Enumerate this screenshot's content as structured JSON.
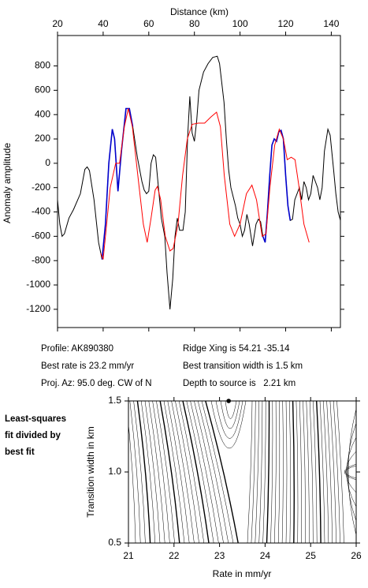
{
  "chart_data": [
    {
      "type": "line",
      "x_label": "Distance (km)",
      "y_label": "Anomaly amplitude",
      "xlim": [
        20,
        144
      ],
      "xticks": [
        20,
        40,
        60,
        80,
        100,
        120,
        140
      ],
      "ylim": [
        -1350,
        1050
      ],
      "yticks": [
        -1200,
        -1000,
        -800,
        -600,
        -400,
        -200,
        0,
        200,
        400,
        600,
        800
      ],
      "series": [
        {
          "color": "#000000",
          "x": [
            20,
            21,
            22,
            23,
            25,
            27,
            30,
            32,
            33,
            34,
            36,
            38,
            39.5,
            41,
            42.5,
            44,
            45,
            46.5,
            48,
            50,
            51.5,
            53,
            55,
            57,
            58,
            59,
            60,
            61,
            62,
            63,
            64.5,
            65.5,
            67,
            68,
            69.3,
            70.5,
            71.5,
            72.5,
            73.5,
            75,
            76,
            77,
            78,
            79,
            80,
            81,
            82,
            84,
            86,
            88,
            90,
            91,
            93,
            94,
            95,
            96,
            98,
            99,
            100,
            101,
            102,
            103,
            104,
            105.5,
            107,
            108,
            109,
            110,
            111,
            112,
            113,
            114,
            115,
            116,
            117,
            118,
            119,
            120,
            121,
            122,
            123,
            124,
            126,
            127,
            128,
            129,
            130,
            131,
            132,
            133,
            134,
            135,
            136,
            137,
            138.5,
            139.5,
            141,
            142,
            143,
            144
          ],
          "values": [
            -300,
            -500,
            -600,
            -580,
            -450,
            -380,
            -250,
            -50,
            -30,
            -60,
            -300,
            -650,
            -790,
            -500,
            0,
            280,
            200,
            -230,
            100,
            450,
            450,
            300,
            50,
            -150,
            -220,
            -250,
            -230,
            0,
            70,
            50,
            -250,
            -450,
            -600,
            -900,
            -1200,
            -950,
            -600,
            -450,
            -550,
            -550,
            -400,
            200,
            550,
            250,
            180,
            350,
            600,
            750,
            820,
            870,
            880,
            820,
            500,
            200,
            -50,
            -200,
            -350,
            -450,
            -500,
            -600,
            -550,
            -420,
            -500,
            -680,
            -500,
            -460,
            -480,
            -600,
            -650,
            -400,
            -100,
            150,
            200,
            180,
            260,
            270,
            200,
            -100,
            -350,
            -470,
            -460,
            -300,
            -200,
            -300,
            -150,
            -200,
            -300,
            -250,
            -100,
            -150,
            -200,
            -300,
            -200,
            100,
            280,
            230,
            -50,
            -250,
            -400,
            -470
          ]
        },
        {
          "color": "#0000cc",
          "x": [
            39.5,
            41,
            42.5,
            44,
            45,
            46.5,
            48,
            50,
            51.5,
            53,
            null,
            110,
            111,
            112,
            113,
            114,
            115,
            116,
            117,
            118,
            119,
            120,
            121,
            122
          ],
          "values": [
            -790,
            -500,
            0,
            280,
            200,
            -230,
            100,
            450,
            450,
            300,
            null,
            -600,
            -650,
            -400,
            -100,
            150,
            200,
            180,
            260,
            270,
            200,
            -100,
            -350,
            -470
          ]
        },
        {
          "color": "#ff0000",
          "x": [
            39,
            40,
            43.1,
            45.5,
            47.2,
            49.3,
            51,
            52.8,
            55.2,
            57.6,
            59.3,
            61,
            62.8,
            63.8,
            65.2,
            67.2,
            69.3,
            70.7,
            72.8,
            74.8,
            76.9,
            79,
            81.7,
            84.5,
            87.2,
            89.7,
            91.4,
            93.1,
            95.5,
            97.6,
            100,
            102.8,
            105.2,
            107.2,
            109.7,
            111.4,
            113.1,
            115.2,
            117.2,
            119,
            120.7,
            122.4,
            124.1,
            125.9,
            128,
            130.3
          ],
          "values": [
            -740,
            -790,
            -200,
            0,
            0,
            300,
            450,
            300,
            -100,
            -500,
            -650,
            -450,
            -220,
            -190,
            -300,
            -600,
            -720,
            -700,
            -500,
            -100,
            200,
            320,
            330,
            330,
            380,
            420,
            300,
            -100,
            -500,
            -600,
            -500,
            -250,
            -180,
            -300,
            -600,
            -580,
            -200,
            150,
            280,
            200,
            30,
            50,
            30,
            -200,
            -500,
            -650
          ]
        }
      ]
    },
    {
      "type": "contour",
      "x_label": "Rate in mm/yr",
      "y_label": "Transition width in km",
      "xlim": [
        21,
        26
      ],
      "xticks": [
        21,
        22,
        23,
        24,
        25,
        26
      ],
      "ylim": [
        0.5,
        1.5
      ],
      "yticks": [
        {
          "value": 0.5,
          "label": "0.5"
        },
        {
          "value": 1,
          "label": "1.0"
        },
        {
          "value": 1.5,
          "label": "1.5"
        }
      ],
      "point": {
        "x": 23.2,
        "y": 1.5
      }
    }
  ],
  "info": {
    "profile": "Profile: AK890380",
    "ridge": "Ridge Xing is 54.21 -35.14",
    "rate": "Best rate is 23.2 mm/yr",
    "width": "Best transition width is 1.5 km",
    "azimuth": "Proj. Az: 95.0 deg. CW of N",
    "depth": "Depth to source is   2.21 km"
  },
  "note": [
    "Least-squares",
    "fit divided by",
    "best fit"
  ]
}
